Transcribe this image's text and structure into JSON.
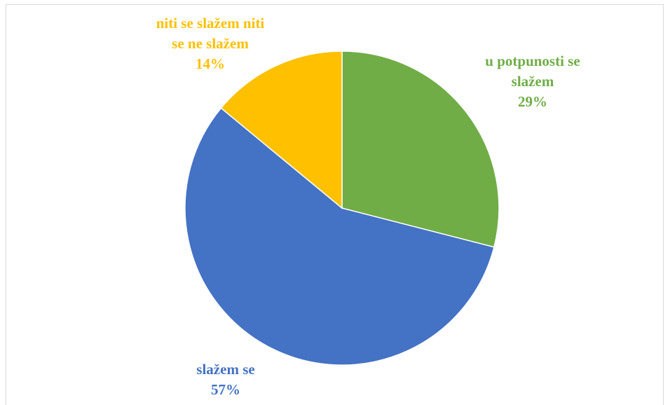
{
  "chart_data": {
    "type": "pie",
    "categories": [
      "u potpunosti se slažem",
      "slažem se",
      "niti se slažem niti se ne slažem"
    ],
    "values": [
      29,
      57,
      14
    ],
    "value_labels": [
      "29%",
      "57%",
      "14%"
    ],
    "colors": [
      "#70ad47",
      "#4472c4",
      "#ffc000"
    ]
  }
}
